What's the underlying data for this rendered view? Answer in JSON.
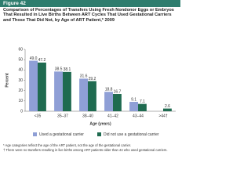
{
  "figure_label": "Figure 42",
  "chart_data": {
    "type": "bar",
    "title": "Comparison of Percentages of Transfers Using Fresh Nondonor Eggs or Embryos That Resulted in Live Births Between ART Cycles That Used Gestational Carriers and Those That Did Not, by Age of ART Patient,* 2009",
    "categories": [
      "<35",
      "35–37",
      "38–40",
      "41–42",
      "43–44",
      ">44†"
    ],
    "series": [
      {
        "name": "Used a gestational carrier",
        "color": "#8f9fd6",
        "values": [
          49.0,
          38.5,
          31.6,
          18.8,
          9.1,
          null
        ],
        "value_labels": [
          "49.0",
          "38.5",
          "31.6",
          "18.8",
          "9.1",
          null
        ]
      },
      {
        "name": "Did not use a gestational carrier",
        "color": "#1f6b50",
        "values": [
          47.2,
          38.1,
          29.2,
          16.7,
          7.1,
          2.6
        ],
        "value_labels": [
          "47.2",
          "38.1",
          "29.2",
          "16.7",
          "7.1",
          "2.6"
        ]
      }
    ],
    "y_label": "Percent",
    "x_label": "Age (years)",
    "ylim": [
      0,
      60
    ],
    "yticks": [
      0,
      10,
      20,
      30,
      40,
      50,
      60
    ],
    "footnotes": [
      "* Age categories reflect the age of the ART patient, not the age of the gestational carrier.",
      "† There were no transfers resulting in live births among ART patients older than 44 who used gestational carriers."
    ]
  }
}
